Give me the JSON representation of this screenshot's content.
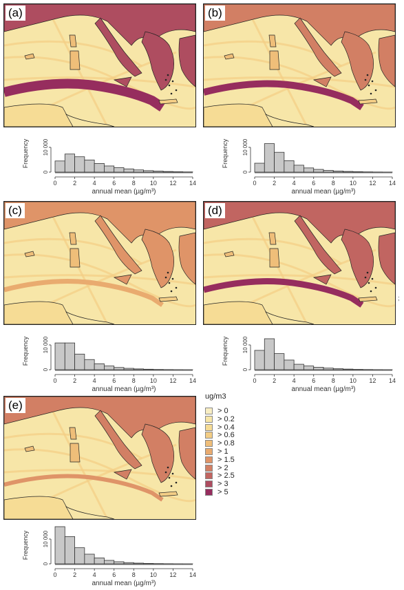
{
  "panels": [
    {
      "label": "(a)",
      "hist": [
        4500,
        7300,
        6200,
        4900,
        3500,
        2500,
        1800,
        1300,
        900,
        600,
        400,
        250,
        150,
        80
      ]
    },
    {
      "label": "(b)",
      "hist": [
        3600,
        11500,
        8000,
        4600,
        2800,
        1700,
        1100,
        700,
        450,
        280,
        170,
        100,
        50,
        25
      ]
    },
    {
      "label": "(c)",
      "hist": [
        10800,
        10800,
        6300,
        4100,
        2400,
        1500,
        900,
        550,
        320,
        190,
        110,
        60,
        30,
        15
      ]
    },
    {
      "label": "(d)",
      "hist": [
        7800,
        12500,
        6500,
        3900,
        2200,
        1500,
        1000,
        650,
        400,
        250,
        140,
        80,
        40,
        20
      ]
    },
    {
      "label": "(e)",
      "hist": [
        15000,
        11000,
        6500,
        3900,
        2400,
        1400,
        850,
        500,
        290,
        170,
        100,
        55,
        28,
        14
      ]
    }
  ],
  "histogram": {
    "ylabel": "Frequency",
    "xlabel": "annual mean (µg/m³)",
    "xticks": [
      "0",
      "2",
      "4",
      "6",
      "8",
      "10",
      "12",
      "14"
    ],
    "yticks": [
      "0",
      "10 000"
    ],
    "xlim": [
      0,
      14
    ],
    "ylim": [
      0,
      15000
    ]
  },
  "legend": {
    "title": "ug/m3",
    "items": [
      {
        "label": "> 0",
        "color": "#f8eec3"
      },
      {
        "label": "> 0.2",
        "color": "#f7e6a8"
      },
      {
        "label": "> 0.4",
        "color": "#f6dc95"
      },
      {
        "label": "> 0.6",
        "color": "#f3cd85"
      },
      {
        "label": "> 0.8",
        "color": "#efbe79"
      },
      {
        "label": "> 1",
        "color": "#e9ab6f"
      },
      {
        "label": "> 1.5",
        "color": "#df9468"
      },
      {
        "label": "> 2",
        "color": "#d27f64"
      },
      {
        "label": "> 2.5",
        "color": "#c16561"
      },
      {
        "label": "> 3",
        "color": "#ae4d60"
      },
      {
        "label": "> 5",
        "color": "#962d5e"
      }
    ]
  },
  "stray_mark": ";"
}
